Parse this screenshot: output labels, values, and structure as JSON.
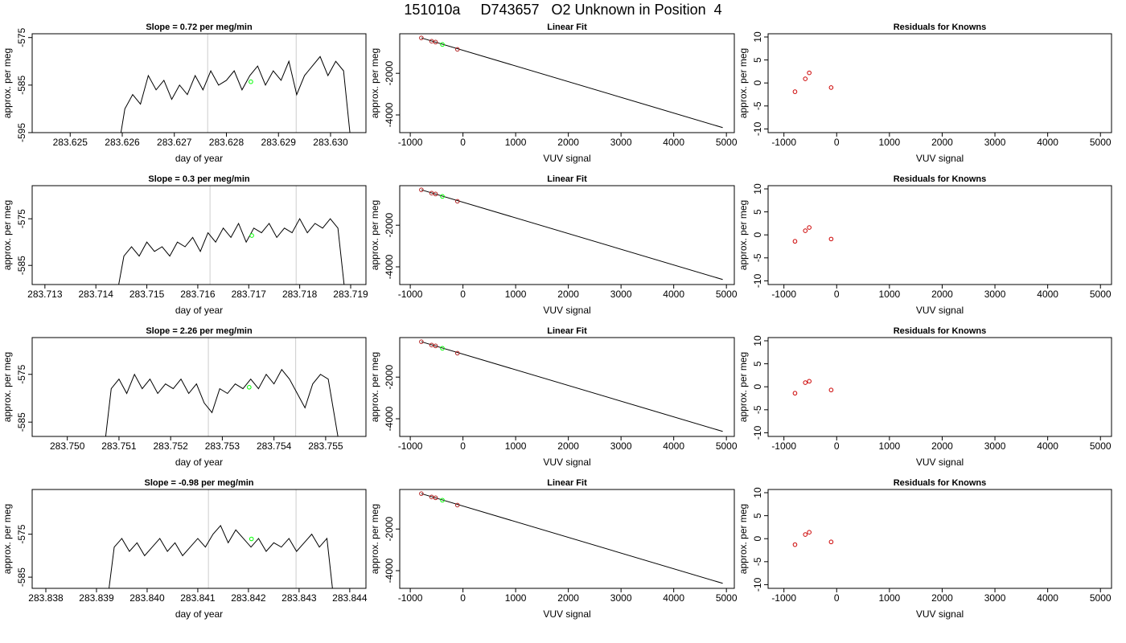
{
  "title": "151010a     D743657   O2 Unknown in Position  4",
  "chart_data": [
    {
      "type": "line",
      "title": "Slope =  0.72  per meg/min",
      "xlabel": "day of year",
      "ylabel": "approx. per meg",
      "x": [
        283.6259,
        283.62605,
        283.6262,
        283.62635,
        283.6265,
        283.62665,
        283.6268,
        283.62695,
        283.6271,
        283.62725,
        283.6274,
        283.62755,
        283.6277,
        283.62785,
        283.628,
        283.62815,
        283.6283,
        283.62845,
        283.6286,
        283.62875,
        283.6289,
        283.62905,
        283.6292,
        283.62935,
        283.6295,
        283.62965,
        283.6298,
        283.62995,
        283.6301,
        283.63025,
        283.6304
      ],
      "values": [
        -600,
        -590,
        -587,
        -589,
        -583,
        -586,
        -584,
        -588,
        -585,
        -587,
        -583,
        -586,
        -582,
        -585,
        -584,
        -582,
        -586,
        -583,
        -581,
        -585,
        -582,
        -584,
        -580,
        -587,
        -583,
        -581,
        -579,
        -583,
        -580,
        -582,
        -598
      ],
      "color": "#000000",
      "xlim": [
        283.62427,
        283.63068
      ],
      "ylim": [
        -595,
        -574.2
      ],
      "xticks": [
        283.625,
        283.626,
        283.627,
        283.628,
        283.629,
        {
          "value": 283.63,
          "label": "283.630"
        }
      ],
      "yticks": [
        -575,
        -585,
        -595
      ],
      "vlines": [
        283.62764,
        283.62934
      ],
      "vline_color": "#cccccc",
      "marker": {
        "x": 283.62847,
        "y": -584.3,
        "color": "#00ff00"
      }
    },
    {
      "type": "fit",
      "title": "Linear Fit",
      "xlabel": "VUV signal",
      "ylabel": "approx. per meg",
      "x": [
        -790,
        -595,
        -520,
        -105
      ],
      "values": [
        -300,
        -460,
        -500,
        -850
      ],
      "color": "#b22222",
      "marker": {
        "x": -390,
        "y": -615,
        "color": "#00ff00"
      },
      "fit": {
        "x": [
          -790,
          4930
        ],
        "y": [
          -300,
          -4610
        ]
      },
      "fit_color": "#000000",
      "xlim": [
        -1200,
        5150
      ],
      "ylim": [
        -4850,
        -100
      ],
      "xticks": [
        -1000,
        0,
        1000,
        2000,
        3000,
        4000,
        5000
      ],
      "yticks": [
        -2000,
        -4000
      ]
    },
    {
      "type": "scatter",
      "title": "Residuals for Knowns",
      "xlabel": "VUV signal",
      "ylabel": "approx. per meg",
      "x": [
        -790,
        -595,
        -520,
        -105
      ],
      "values": [
        -1.9,
        0.9,
        2.2,
        -1.0
      ],
      "color": "#cc0000",
      "xlim": [
        -1300,
        5210
      ],
      "ylim": [
        -10.8,
        10.7
      ],
      "xticks": [
        -1000,
        0,
        1000,
        2000,
        3000,
        4000,
        5000
      ],
      "yticks": [
        10,
        5,
        0,
        -5,
        -10
      ]
    },
    {
      "type": "line",
      "title": "Slope =  0.3  per meg/min",
      "xlabel": "day of year",
      "ylabel": "approx. per meg",
      "x": [
        283.7144,
        283.71455,
        283.7147,
        283.71485,
        283.715,
        283.71515,
        283.7153,
        283.71545,
        283.7156,
        283.71575,
        283.7159,
        283.71605,
        283.7162,
        283.71635,
        283.7165,
        283.71665,
        283.7168,
        283.71695,
        283.7171,
        283.71725,
        283.7174,
        283.71755,
        283.7177,
        283.71785,
        283.718,
        283.71815,
        283.7183,
        283.71845,
        283.7186,
        283.71875,
        283.7189
      ],
      "values": [
        -592,
        -583,
        -581,
        -583,
        -580,
        -582,
        -581,
        -583,
        -580,
        -581,
        -579,
        -582,
        -578,
        -580,
        -577,
        -579,
        -576,
        -580,
        -577,
        -578,
        -576,
        -579,
        -577,
        -578,
        -575,
        -578,
        -576,
        -577,
        -575,
        -577,
        -592
      ],
      "color": "#000000",
      "xlim": [
        283.71275,
        283.7193
      ],
      "ylim": [
        -589.1,
        -567.9
      ],
      "xticks": [
        283.713,
        283.714,
        283.715,
        283.716,
        283.717,
        283.718,
        283.719
      ],
      "yticks": [
        -575,
        -585
      ],
      "vlines": [
        283.71624,
        283.71793
      ],
      "vline_color": "#cccccc",
      "marker": {
        "x": 283.71706,
        "y": -578.6,
        "color": "#00ff00"
      }
    },
    {
      "type": "fit",
      "title": "Linear Fit",
      "xlabel": "VUV signal",
      "ylabel": "approx. per meg",
      "x": [
        -790,
        -595,
        -520,
        -105
      ],
      "values": [
        -300,
        -460,
        -500,
        -850
      ],
      "color": "#b22222",
      "marker": {
        "x": -390,
        "y": -615,
        "color": "#00ff00"
      },
      "fit": {
        "x": [
          -790,
          4930
        ],
        "y": [
          -300,
          -4610
        ]
      },
      "fit_color": "#000000",
      "xlim": [
        -1200,
        5150
      ],
      "ylim": [
        -4850,
        -100
      ],
      "xticks": [
        -1000,
        0,
        1000,
        2000,
        3000,
        4000,
        5000
      ],
      "yticks": [
        -2000,
        -4000
      ]
    },
    {
      "type": "scatter",
      "title": "Residuals for Knowns",
      "xlabel": "VUV signal",
      "ylabel": "approx. per meg",
      "x": [
        -790,
        -595,
        -520,
        -105
      ],
      "values": [
        -1.4,
        0.9,
        1.6,
        -0.9
      ],
      "color": "#cc0000",
      "xlim": [
        -1300,
        5210
      ],
      "ylim": [
        -10.8,
        10.7
      ],
      "xticks": [
        -1000,
        0,
        1000,
        2000,
        3000,
        4000,
        5000
      ],
      "yticks": [
        10,
        5,
        0,
        -5,
        -10
      ]
    },
    {
      "type": "line",
      "title": "Slope =  2.26  per meg/min",
      "xlabel": "day of year",
      "ylabel": "approx. per meg",
      "x": [
        283.7507,
        283.75085,
        283.751,
        283.75115,
        283.7513,
        283.75145,
        283.7516,
        283.75175,
        283.7519,
        283.75205,
        283.7522,
        283.75235,
        283.7525,
        283.75265,
        283.7528,
        283.75295,
        283.7531,
        283.75325,
        283.7534,
        283.75355,
        283.7537,
        283.75385,
        283.754,
        283.75415,
        283.7543,
        283.75445,
        283.7546,
        283.75475,
        283.7549,
        283.75505,
        283.7553
      ],
      "values": [
        -592,
        -578,
        -576,
        -579,
        -575,
        -578,
        -576,
        -579,
        -577,
        -578,
        -576,
        -579,
        -577,
        -581,
        -583,
        -578,
        -579,
        -577,
        -578,
        -576,
        -578,
        -575,
        -577,
        -574,
        -576,
        -579,
        -582,
        -577,
        -575,
        -576,
        -592
      ],
      "color": "#000000",
      "xlim": [
        283.74932,
        283.75578
      ],
      "ylim": [
        -588,
        -567.3
      ],
      "xticks": [
        {
          "value": 283.75,
          "label": "283.750"
        },
        283.751,
        283.752,
        283.753,
        283.754,
        283.755
      ],
      "yticks": [
        -575,
        -585
      ],
      "vlines": [
        283.75273,
        283.75442
      ],
      "vline_color": "#cccccc",
      "marker": {
        "x": 283.75352,
        "y": -577.7,
        "color": "#00ff00"
      }
    },
    {
      "type": "fit",
      "title": "Linear Fit",
      "xlabel": "VUV signal",
      "ylabel": "approx. per meg",
      "x": [
        -790,
        -595,
        -520,
        -105
      ],
      "values": [
        -300,
        -460,
        -500,
        -850
      ],
      "color": "#b22222",
      "marker": {
        "x": -390,
        "y": -615,
        "color": "#00ff00"
      },
      "fit": {
        "x": [
          -790,
          4930
        ],
        "y": [
          -300,
          -4610
        ]
      },
      "fit_color": "#000000",
      "xlim": [
        -1200,
        5150
      ],
      "ylim": [
        -4850,
        -100
      ],
      "xticks": [
        -1000,
        0,
        1000,
        2000,
        3000,
        4000,
        5000
      ],
      "yticks": [
        -2000,
        -4000
      ]
    },
    {
      "type": "scatter",
      "title": "Residuals for Knowns",
      "xlabel": "VUV signal",
      "ylabel": "approx. per meg",
      "x": [
        -790,
        -595,
        -520,
        -105
      ],
      "values": [
        -1.4,
        0.9,
        1.2,
        -0.7
      ],
      "color": "#cc0000",
      "xlim": [
        -1300,
        5210
      ],
      "ylim": [
        -10.8,
        10.7
      ],
      "xticks": [
        -1000,
        0,
        1000,
        2000,
        3000,
        4000,
        5000
      ],
      "yticks": [
        10,
        5,
        0,
        -5,
        -10
      ]
    },
    {
      "type": "line",
      "title": "Slope =  -0.98  per meg/min",
      "xlabel": "day of year",
      "ylabel": "approx. per meg",
      "x": [
        283.8392,
        283.83935,
        283.8395,
        283.83965,
        283.8398,
        283.83995,
        283.8401,
        283.84025,
        283.8404,
        283.84055,
        283.8407,
        283.84085,
        283.841,
        283.84115,
        283.8413,
        283.84145,
        283.8416,
        283.84175,
        283.8419,
        283.84205,
        283.8422,
        283.84235,
        283.8425,
        283.84265,
        283.8428,
        283.84295,
        283.8431,
        283.84325,
        283.8434,
        283.84355,
        283.8437
      ],
      "values": [
        -592,
        -578,
        -576,
        -579,
        -577,
        -580,
        -578,
        -576,
        -579,
        -577,
        -580,
        -578,
        -576,
        -578,
        -575,
        -573,
        -577,
        -574,
        -576,
        -578,
        -576,
        -579,
        -577,
        -578,
        -576,
        -579,
        -577,
        -575,
        -578,
        -576,
        -592
      ],
      "color": "#000000",
      "xlim": [
        283.83773,
        283.84432
      ],
      "ylim": [
        -587.6,
        -564.6
      ],
      "xticks": [
        283.838,
        283.839,
        {
          "value": 283.84,
          "label": "283.840"
        },
        283.841,
        283.842,
        283.843,
        283.844
      ],
      "yticks": [
        -575,
        -585
      ],
      "vlines": [
        283.84121,
        283.84294
      ],
      "vline_color": "#cccccc",
      "marker": {
        "x": 283.84206,
        "y": -576.1,
        "color": "#00ff00"
      }
    },
    {
      "type": "fit",
      "title": "Linear Fit",
      "xlabel": "VUV signal",
      "ylabel": "approx. per meg",
      "x": [
        -790,
        -595,
        -520,
        -105
      ],
      "values": [
        -300,
        -460,
        -500,
        -850
      ],
      "color": "#b22222",
      "marker": {
        "x": -390,
        "y": -615,
        "color": "#00ff00"
      },
      "fit": {
        "x": [
          -790,
          4930
        ],
        "y": [
          -300,
          -4610
        ]
      },
      "fit_color": "#000000",
      "xlim": [
        -1200,
        5150
      ],
      "ylim": [
        -4850,
        -100
      ],
      "xticks": [
        -1000,
        0,
        1000,
        2000,
        3000,
        4000,
        5000
      ],
      "yticks": [
        -2000,
        -4000
      ]
    },
    {
      "type": "scatter",
      "title": "Residuals for Knowns",
      "xlabel": "VUV signal",
      "ylabel": "approx. per meg",
      "x": [
        -790,
        -595,
        -520,
        -105
      ],
      "values": [
        -1.3,
        0.9,
        1.4,
        -0.7
      ],
      "color": "#cc0000",
      "xlim": [
        -1300,
        5210
      ],
      "ylim": [
        -10.8,
        10.7
      ],
      "xticks": [
        -1000,
        0,
        1000,
        2000,
        3000,
        4000,
        5000
      ],
      "yticks": [
        10,
        5,
        0,
        -5,
        -10
      ]
    }
  ]
}
